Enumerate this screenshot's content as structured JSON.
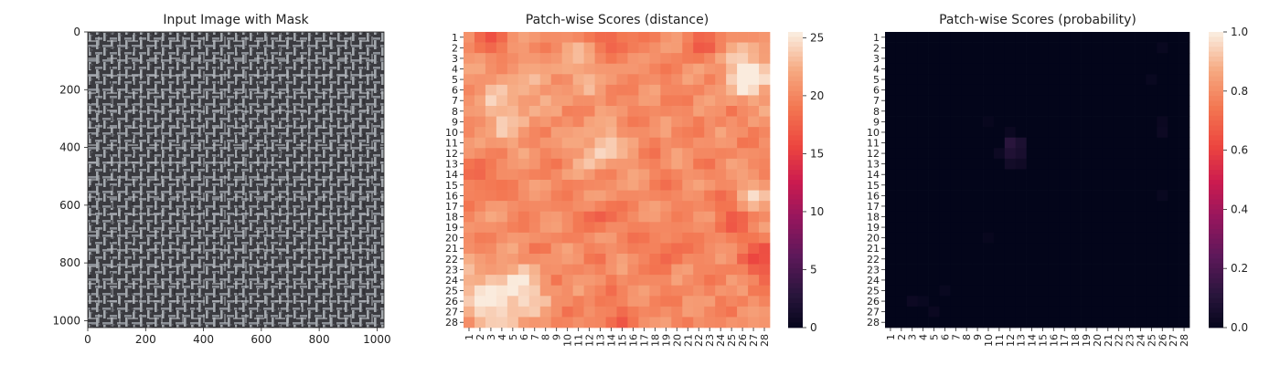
{
  "chart_data": [
    {
      "type": "image",
      "title": "Input Image with Mask",
      "xticks": [
        "0",
        "200",
        "400",
        "600",
        "800",
        "1000"
      ],
      "yticks": [
        "0",
        "200",
        "400",
        "600",
        "800",
        "1000"
      ],
      "xlim": [
        0,
        1024
      ],
      "ylim": [
        1024,
        0
      ],
      "texture": "gray woven fabric (burlap) crosshatch"
    },
    {
      "type": "heatmap",
      "title": "Patch-wise Scores (distance)",
      "colormap": "rocket",
      "xlabels": [
        "1",
        "2",
        "3",
        "4",
        "5",
        "6",
        "7",
        "8",
        "9",
        "10",
        "11",
        "12",
        "13",
        "14",
        "15",
        "16",
        "17",
        "18",
        "19",
        "20",
        "21",
        "22",
        "23",
        "24",
        "25",
        "26",
        "27",
        "28"
      ],
      "ylabels": [
        "1",
        "2",
        "3",
        "4",
        "5",
        "6",
        "7",
        "8",
        "9",
        "10",
        "11",
        "12",
        "13",
        "14",
        "15",
        "16",
        "17",
        "18",
        "19",
        "20",
        "21",
        "22",
        "23",
        "24",
        "25",
        "26",
        "27",
        "28"
      ],
      "colorbar": {
        "min": 0,
        "max": 25.5,
        "ticks": [
          "0",
          "5",
          "10",
          "15",
          "20",
          "25"
        ],
        "tick_values": [
          0,
          5,
          10,
          15,
          20,
          25
        ]
      },
      "base_value": 20.5,
      "hotspots": [
        {
          "row": 11.5,
          "col": 13,
          "value": 24.5,
          "radius": 1.5
        },
        {
          "row": 26,
          "col": 3,
          "value": 25,
          "radius": 2.2
        },
        {
          "row": 25,
          "col": 6,
          "value": 23.5,
          "radius": 1.6
        },
        {
          "row": 4,
          "col": 27,
          "value": 24,
          "radius": 1.6
        },
        {
          "row": 5,
          "col": 26,
          "value": 23.8,
          "radius": 1.4
        },
        {
          "row": 6,
          "col": 5,
          "value": 22.5,
          "radius": 2
        },
        {
          "row": 4,
          "col": 11,
          "value": 22.5,
          "radius": 2
        },
        {
          "row": 16,
          "col": 27,
          "value": 23.5,
          "radius": 1.2
        },
        {
          "row": 9,
          "col": 4,
          "value": 22.5,
          "radius": 2
        }
      ],
      "coldspots": [
        {
          "row": 1,
          "col": 14,
          "value": 17.5,
          "radius": 1.2
        },
        {
          "row": 1,
          "col": 3,
          "value": 17.5,
          "radius": 1.2
        },
        {
          "row": 22,
          "col": 28,
          "value": 16.5,
          "radius": 1.4
        },
        {
          "row": 18,
          "col": 25,
          "value": 17.5,
          "radius": 1.2
        },
        {
          "row": 14,
          "col": 2,
          "value": 17.5,
          "radius": 1
        },
        {
          "row": 18,
          "col": 13,
          "value": 18,
          "radius": 1
        },
        {
          "row": 21,
          "col": 19,
          "value": 18,
          "radius": 1.2
        },
        {
          "row": 28,
          "col": 14,
          "value": 18.5,
          "radius": 1.5
        },
        {
          "row": 1,
          "col": 22,
          "value": 17.8,
          "radius": 1.2
        }
      ]
    },
    {
      "type": "heatmap",
      "title": "Patch-wise Scores (probability)",
      "colormap": "rocket",
      "xlabels": [
        "1",
        "2",
        "3",
        "4",
        "5",
        "6",
        "7",
        "8",
        "9",
        "10",
        "11",
        "12",
        "13",
        "14",
        "15",
        "16",
        "17",
        "18",
        "19",
        "20",
        "21",
        "22",
        "23",
        "24",
        "25",
        "26",
        "27",
        "28"
      ],
      "ylabels": [
        "1",
        "2",
        "3",
        "4",
        "5",
        "6",
        "7",
        "8",
        "9",
        "10",
        "11",
        "12",
        "13",
        "14",
        "15",
        "16",
        "17",
        "18",
        "19",
        "20",
        "21",
        "22",
        "23",
        "24",
        "25",
        "26",
        "27",
        "28"
      ],
      "colorbar": {
        "min": 0,
        "max": 1,
        "ticks": [
          "0.0",
          "0.2",
          "0.4",
          "0.6",
          "0.8",
          "1.0"
        ],
        "tick_values": [
          0,
          0.2,
          0.4,
          0.6,
          0.8,
          1.0
        ]
      },
      "base_value": 0.0,
      "cells": [
        {
          "row": 11,
          "col": 12,
          "value": 0.12
        },
        {
          "row": 12,
          "col": 12,
          "value": 0.09
        },
        {
          "row": 11,
          "col": 13,
          "value": 0.08
        },
        {
          "row": 12,
          "col": 13,
          "value": 0.07
        },
        {
          "row": 13,
          "col": 12,
          "value": 0.05
        },
        {
          "row": 13,
          "col": 13,
          "value": 0.04
        },
        {
          "row": 12,
          "col": 11,
          "value": 0.03
        },
        {
          "row": 10,
          "col": 12,
          "value": 0.025
        },
        {
          "row": 10,
          "col": 26,
          "value": 0.03
        },
        {
          "row": 9,
          "col": 26,
          "value": 0.025
        },
        {
          "row": 2,
          "col": 26,
          "value": 0.02
        },
        {
          "row": 5,
          "col": 25,
          "value": 0.02
        },
        {
          "row": 16,
          "col": 26,
          "value": 0.02
        },
        {
          "row": 9,
          "col": 10,
          "value": 0.015
        },
        {
          "row": 20,
          "col": 10,
          "value": 0.015
        },
        {
          "row": 26,
          "col": 3,
          "value": 0.03
        },
        {
          "row": 26,
          "col": 4,
          "value": 0.02
        },
        {
          "row": 27,
          "col": 5,
          "value": 0.025
        },
        {
          "row": 25,
          "col": 6,
          "value": 0.02
        }
      ]
    }
  ]
}
